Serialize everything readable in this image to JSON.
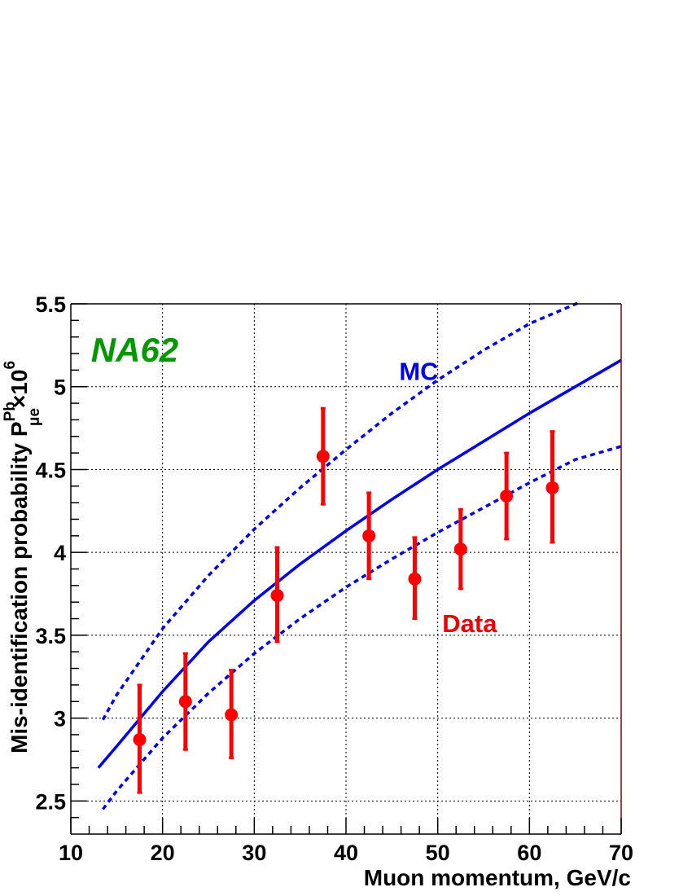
{
  "chart_data": {
    "type": "scatter",
    "title": "",
    "xlabel": "Muon momentum, GeV/c",
    "ylabel": {
      "main": "Mis-identification probability P",
      "superscript": "Pb",
      "subscript": "μe",
      "suffix": "×10",
      "exponent": "6"
    },
    "xlim": [
      10,
      70
    ],
    "ylim": [
      2.3,
      5.5
    ],
    "x_ticks": [
      "10",
      "20",
      "30",
      "40",
      "50",
      "60",
      "70"
    ],
    "y_ticks": [
      "2.5",
      "3",
      "3.5",
      "4",
      "4.5",
      "5",
      "5.5"
    ],
    "grid": true,
    "experiment_label": "NA62",
    "series": [
      {
        "name": "Data",
        "kind": "points-with-errors",
        "color": "#ff0000",
        "x": [
          17.5,
          22.5,
          27.5,
          32.5,
          37.5,
          42.5,
          47.5,
          52.5,
          57.5,
          62.5
        ],
        "y": [
          2.87,
          3.1,
          3.02,
          3.74,
          4.58,
          4.1,
          3.84,
          4.02,
          4.34,
          4.39
        ],
        "err_low": [
          0.32,
          0.29,
          0.26,
          0.28,
          0.29,
          0.26,
          0.24,
          0.24,
          0.26,
          0.33
        ],
        "err_high": [
          0.33,
          0.29,
          0.27,
          0.29,
          0.29,
          0.26,
          0.25,
          0.24,
          0.26,
          0.34
        ]
      },
      {
        "name": "MC",
        "kind": "curve",
        "color": "#0000ee",
        "style": "solid",
        "x": [
          13,
          15,
          20,
          25,
          30,
          35,
          40,
          45,
          50,
          55,
          60,
          65,
          70
        ],
        "y": [
          2.7,
          2.83,
          3.16,
          3.46,
          3.71,
          3.93,
          4.13,
          4.32,
          4.5,
          4.67,
          4.84,
          5.0,
          5.16
        ]
      },
      {
        "name": "",
        "kind": "curve",
        "color": "#0000ee",
        "style": "dashed",
        "x": [
          13.5,
          15,
          20,
          25,
          30,
          35,
          40,
          45,
          50,
          55,
          60,
          65.5
        ],
        "y": [
          2.99,
          3.14,
          3.54,
          3.86,
          4.14,
          4.39,
          4.62,
          4.84,
          5.04,
          5.22,
          5.38,
          5.51
        ]
      },
      {
        "name": "",
        "kind": "curve",
        "color": "#0000ee",
        "style": "dashed",
        "x": [
          13.5,
          15,
          20,
          25,
          30,
          35,
          40,
          45,
          50,
          55,
          60,
          65,
          70
        ],
        "y": [
          2.45,
          2.56,
          2.88,
          3.15,
          3.39,
          3.6,
          3.79,
          3.96,
          4.12,
          4.27,
          4.42,
          4.56,
          4.64
        ]
      }
    ],
    "annotations": [
      {
        "text": "MC",
        "color": "#0000ee",
        "x": 45.8,
        "y": 5.04
      },
      {
        "text": "Data",
        "color": "#ee0000",
        "x": 50.5,
        "y": 3.52
      },
      {
        "text": "NA62",
        "color": "#009900",
        "x": 12.2,
        "y": 5.15
      }
    ]
  }
}
